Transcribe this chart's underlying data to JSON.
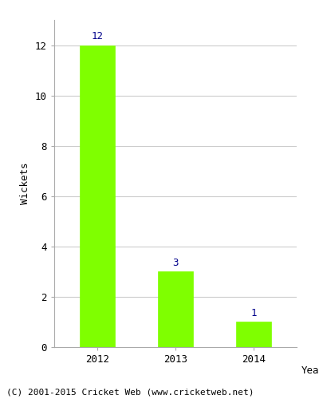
{
  "categories": [
    "2012",
    "2013",
    "2014"
  ],
  "values": [
    12,
    3,
    1
  ],
  "bar_color": "#7FFF00",
  "bar_edge_color": "#7FFF00",
  "xlabel": "Year",
  "ylabel": "Wickets",
  "ylim": [
    0,
    13.0
  ],
  "yticks": [
    0,
    2,
    4,
    6,
    8,
    10,
    12
  ],
  "annotation_color": "#00008B",
  "annotation_fontsize": 9,
  "xlabel_fontsize": 9,
  "ylabel_fontsize": 9,
  "tick_fontsize": 9,
  "footer_text": "(C) 2001-2015 Cricket Web (www.cricketweb.net)",
  "footer_fontsize": 8,
  "background_color": "#ffffff",
  "grid_color": "#cccccc",
  "bar_width": 0.45
}
